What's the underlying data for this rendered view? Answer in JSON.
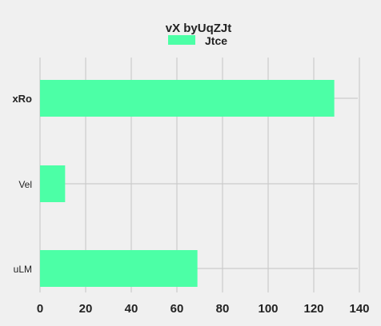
{
  "chart_data": {
    "type": "bar",
    "orientation": "horizontal",
    "title": "vX byUqZJt",
    "categories": [
      "xRo",
      "Vel",
      "uLM"
    ],
    "series": [
      {
        "name": "Jtce",
        "values": [
          129,
          11,
          69
        ],
        "color": "#4cffa6"
      }
    ],
    "xlim": [
      0,
      140
    ],
    "xticks": [
      "0",
      "20",
      "40",
      "60",
      "80",
      "100",
      "120",
      "140"
    ],
    "grid": true,
    "legend_position": "top-center",
    "background": "#f0f0f0"
  }
}
